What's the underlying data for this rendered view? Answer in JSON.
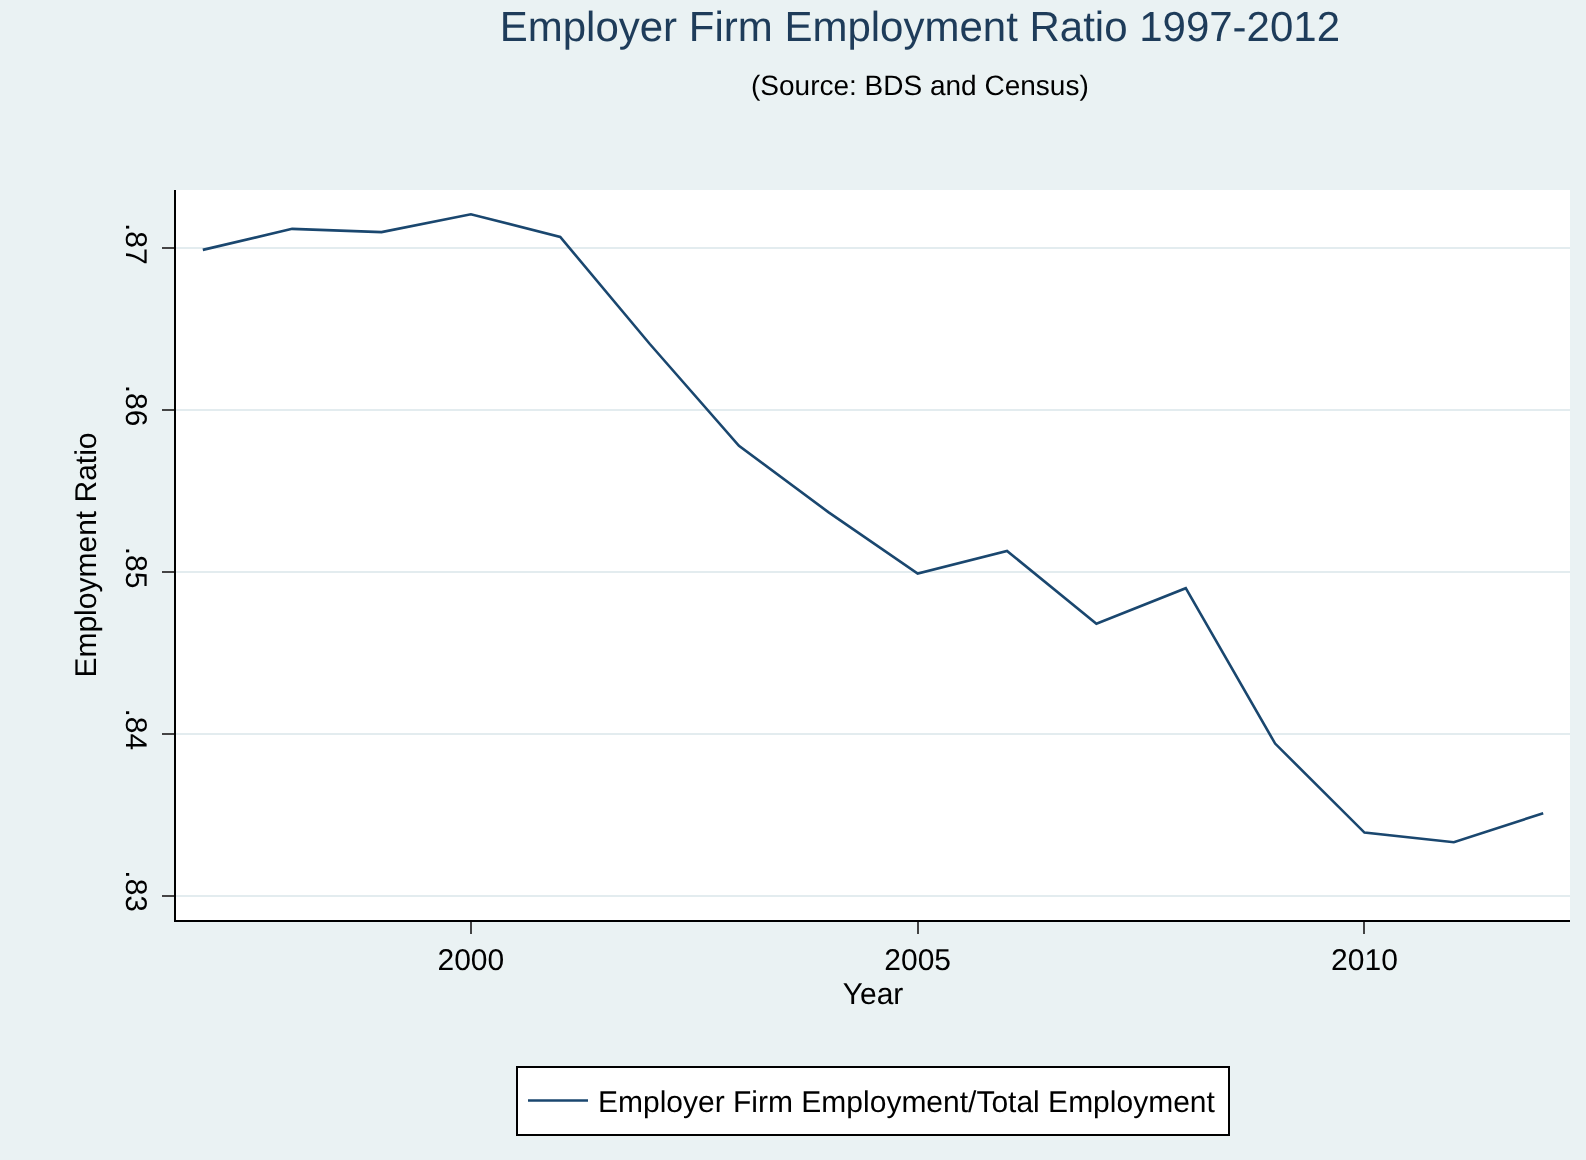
{
  "chart_data": {
    "type": "line",
    "title": "Employer Firm Employment Ratio 1997-2012",
    "subtitle": "(Source: BDS and Census)",
    "xlabel": "Year",
    "ylabel": "Employment Ratio",
    "x": [
      1997,
      1998,
      1999,
      2000,
      2001,
      2002,
      2003,
      2004,
      2005,
      2006,
      2007,
      2008,
      2009,
      2010,
      2011,
      2012
    ],
    "series": [
      {
        "name": "Employer Firm Employment/Total Employment",
        "color": "#1a476f",
        "values": [
          0.8699,
          0.8712,
          0.871,
          0.8721,
          0.8707,
          0.8641,
          0.8578,
          0.8537,
          0.8499,
          0.8513,
          0.8468,
          0.849,
          0.8394,
          0.8339,
          0.8333,
          0.8351
        ]
      }
    ],
    "xlim": [
      1996.7,
      2012.3
    ],
    "xticks": [
      2000,
      2005,
      2010
    ],
    "ylim": [
      0.8285,
      0.8736
    ],
    "yticks": [
      {
        "value": 0.83,
        "label": ".83"
      },
      {
        "value": 0.84,
        "label": ".84"
      },
      {
        "value": 0.85,
        "label": ".85"
      },
      {
        "value": 0.86,
        "label": ".86"
      },
      {
        "value": 0.87,
        "label": ".87"
      }
    ],
    "grid": "y",
    "legend": "bottom",
    "marker": "none",
    "line_style": "solid"
  }
}
